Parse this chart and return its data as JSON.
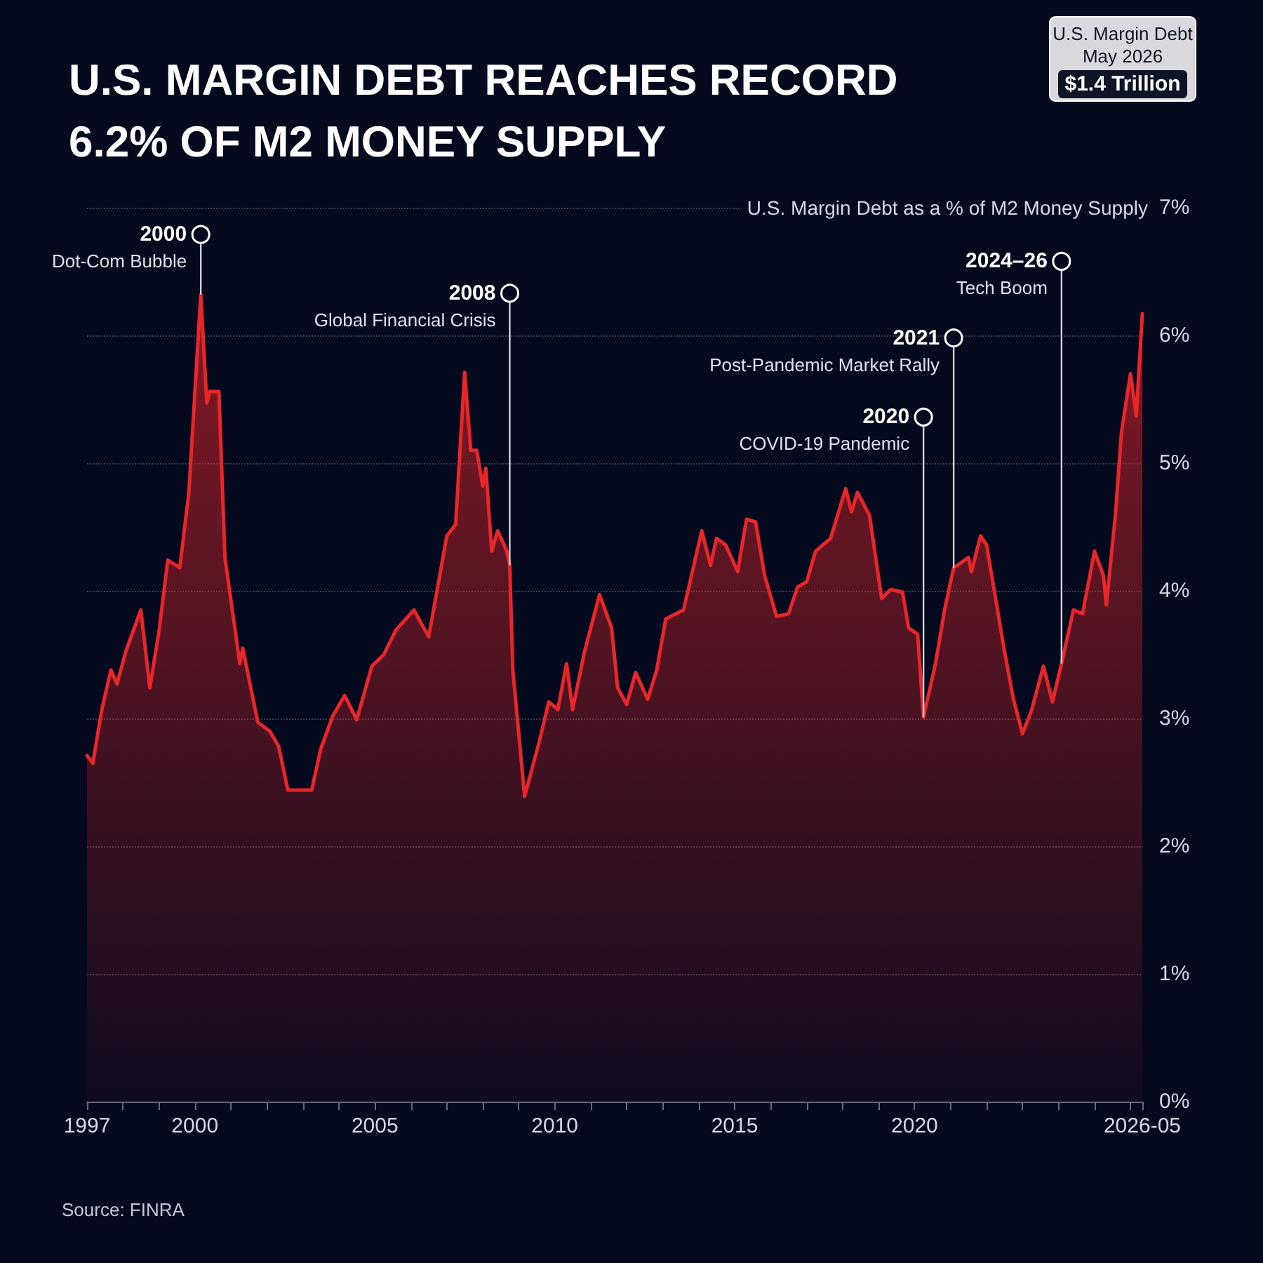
{
  "chart_data": {
    "type": "area",
    "title": "U.S. MARGIN DEBT REACHES RECORD 6.2% OF M2 MONEY SUPPLY",
    "ylabel": "U.S. Margin Debt as a % of M2 Money Supply",
    "x": [
      "1997-01",
      "1997-03",
      "1997-06",
      "1997-09",
      "1997-11",
      "1998-02",
      "1998-07",
      "1998-10",
      "1999-01",
      "1999-04",
      "1999-08",
      "1999-11",
      "2000-03",
      "2000-05",
      "2000-06",
      "2000-09",
      "2000-11",
      "2001-04",
      "2001-05",
      "2001-10",
      "2002-02",
      "2002-05",
      "2002-08",
      "2003-04",
      "2003-07",
      "2003-11",
      "2004-03",
      "2004-07",
      "2004-12",
      "2005-04",
      "2005-08",
      "2006-02",
      "2006-07",
      "2006-10",
      "2007-01",
      "2007-04",
      "2007-07",
      "2007-09",
      "2007-11",
      "2008-01",
      "2008-02",
      "2008-04",
      "2008-06",
      "2008-09",
      "2008-10",
      "2008-11",
      "2009-03",
      "2009-08",
      "2009-11",
      "2010-02",
      "2010-05",
      "2010-07",
      "2010-11",
      "2011-04",
      "2011-08",
      "2011-10",
      "2012-01",
      "2012-04",
      "2012-08",
      "2012-11",
      "2013-02",
      "2013-08",
      "2014-02",
      "2014-05",
      "2014-07",
      "2014-10",
      "2015-02",
      "2015-05",
      "2015-08",
      "2015-11",
      "2016-03",
      "2016-07",
      "2016-10",
      "2017-01",
      "2017-04",
      "2017-09",
      "2018-02",
      "2018-04",
      "2018-06",
      "2018-10",
      "2019-02",
      "2019-05",
      "2019-09",
      "2019-11",
      "2020-02",
      "2020-04",
      "2020-08",
      "2020-11",
      "2021-02",
      "2021-07",
      "2021-08",
      "2021-11",
      "2022-01",
      "2022-07",
      "2022-10",
      "2023-01",
      "2023-04",
      "2023-08",
      "2023-11",
      "2024-02",
      "2024-06",
      "2024-09",
      "2025-01",
      "2025-04",
      "2025-05",
      "2025-08",
      "2025-10",
      "2026-01",
      "2026-03",
      "2026-05"
    ],
    "series": [
      {
        "color": "#e8262a",
        "values": [
          2.71,
          2.65,
          3.07,
          3.38,
          3.27,
          3.53,
          3.85,
          3.24,
          3.68,
          4.24,
          4.18,
          4.77,
          6.32,
          5.47,
          5.56,
          5.56,
          4.26,
          3.43,
          3.55,
          2.97,
          2.9,
          2.78,
          2.44,
          2.44,
          2.76,
          3.02,
          3.18,
          2.99,
          3.41,
          3.5,
          3.69,
          3.85,
          3.64,
          4.03,
          4.43,
          4.52,
          5.71,
          5.1,
          5.1,
          4.82,
          4.96,
          4.31,
          4.47,
          4.31,
          4.2,
          3.38,
          2.39,
          2.83,
          3.13,
          3.07,
          3.43,
          3.07,
          3.53,
          3.97,
          3.71,
          3.24,
          3.11,
          3.36,
          3.15,
          3.38,
          3.78,
          3.85,
          4.47,
          4.2,
          4.41,
          4.36,
          4.15,
          4.56,
          4.54,
          4.12,
          3.8,
          3.82,
          4.03,
          4.07,
          4.31,
          4.41,
          4.8,
          4.62,
          4.77,
          4.59,
          3.94,
          4.01,
          3.99,
          3.71,
          3.66,
          3.01,
          3.43,
          3.85,
          4.18,
          4.26,
          4.15,
          4.43,
          4.36,
          3.53,
          3.15,
          2.88,
          3.06,
          3.41,
          3.13,
          3.43,
          3.85,
          3.82,
          4.31,
          4.12,
          3.89,
          4.59,
          5.24,
          5.7,
          5.37,
          6.17
        ]
      }
    ],
    "xlim": [
      "1997-01",
      "2026-05"
    ],
    "xticks": [
      {
        "value": "1997-01",
        "label": "1997"
      },
      {
        "value": "1998-01",
        "label": null
      },
      {
        "value": "1999-01",
        "label": null
      },
      {
        "value": "2000-01",
        "label": "2000"
      },
      {
        "value": "2001-01",
        "label": null
      },
      {
        "value": "2002-01",
        "label": null
      },
      {
        "value": "2003-01",
        "label": null
      },
      {
        "value": "2004-01",
        "label": null
      },
      {
        "value": "2005-01",
        "label": "2005"
      },
      {
        "value": "2006-01",
        "label": null
      },
      {
        "value": "2007-01",
        "label": null
      },
      {
        "value": "2008-01",
        "label": null
      },
      {
        "value": "2009-01",
        "label": null
      },
      {
        "value": "2010-01",
        "label": "2010"
      },
      {
        "value": "2011-01",
        "label": null
      },
      {
        "value": "2012-01",
        "label": null
      },
      {
        "value": "2013-01",
        "label": null
      },
      {
        "value": "2014-01",
        "label": null
      },
      {
        "value": "2015-01",
        "label": "2015"
      },
      {
        "value": "2016-01",
        "label": null
      },
      {
        "value": "2017-01",
        "label": null
      },
      {
        "value": "2018-01",
        "label": null
      },
      {
        "value": "2019-01",
        "label": null
      },
      {
        "value": "2020-01",
        "label": "2020"
      },
      {
        "value": "2021-01",
        "label": null
      },
      {
        "value": "2022-01",
        "label": null
      },
      {
        "value": "2023-01",
        "label": null
      },
      {
        "value": "2024-01",
        "label": null
      },
      {
        "value": "2025-01",
        "label": null
      },
      {
        "value": "2026-01",
        "label": null
      },
      {
        "value": "2026-05",
        "label": "2026-05"
      }
    ],
    "ylim": [
      0,
      7
    ],
    "yticks": [
      {
        "value": 0,
        "label": "0%"
      },
      {
        "value": 1,
        "label": "1%"
      },
      {
        "value": 2,
        "label": "2%"
      },
      {
        "value": 3,
        "label": "3%"
      },
      {
        "value": 4,
        "label": "4%"
      },
      {
        "value": 5,
        "label": "5%"
      },
      {
        "value": 6,
        "label": "6%"
      },
      {
        "value": 7,
        "label": "7%"
      }
    ],
    "grid": "y",
    "marker": "none",
    "line_style": "solid",
    "annotations": [
      {
        "text": "2000\nDot-Com Bubble",
        "x": "2000-03",
        "y": 6.79
      },
      {
        "text": "2008\nGlobal Financial Crisis",
        "x": "2008-10",
        "y": 6.33
      },
      {
        "text": "2020\nCOVID-19 Pandemic",
        "x": "2020-04",
        "y": 5.36
      },
      {
        "text": "2021\nPost-Pandemic Market Rally",
        "x": "2021-02",
        "y": 5.98
      },
      {
        "text": "2024–26\nTech Boom",
        "x": "2024-02",
        "y": 6.58
      },
      "U.S. Margin Debt\nMay 2026\n$1.4 Trillion",
      "Source: FINRA"
    ]
  }
}
